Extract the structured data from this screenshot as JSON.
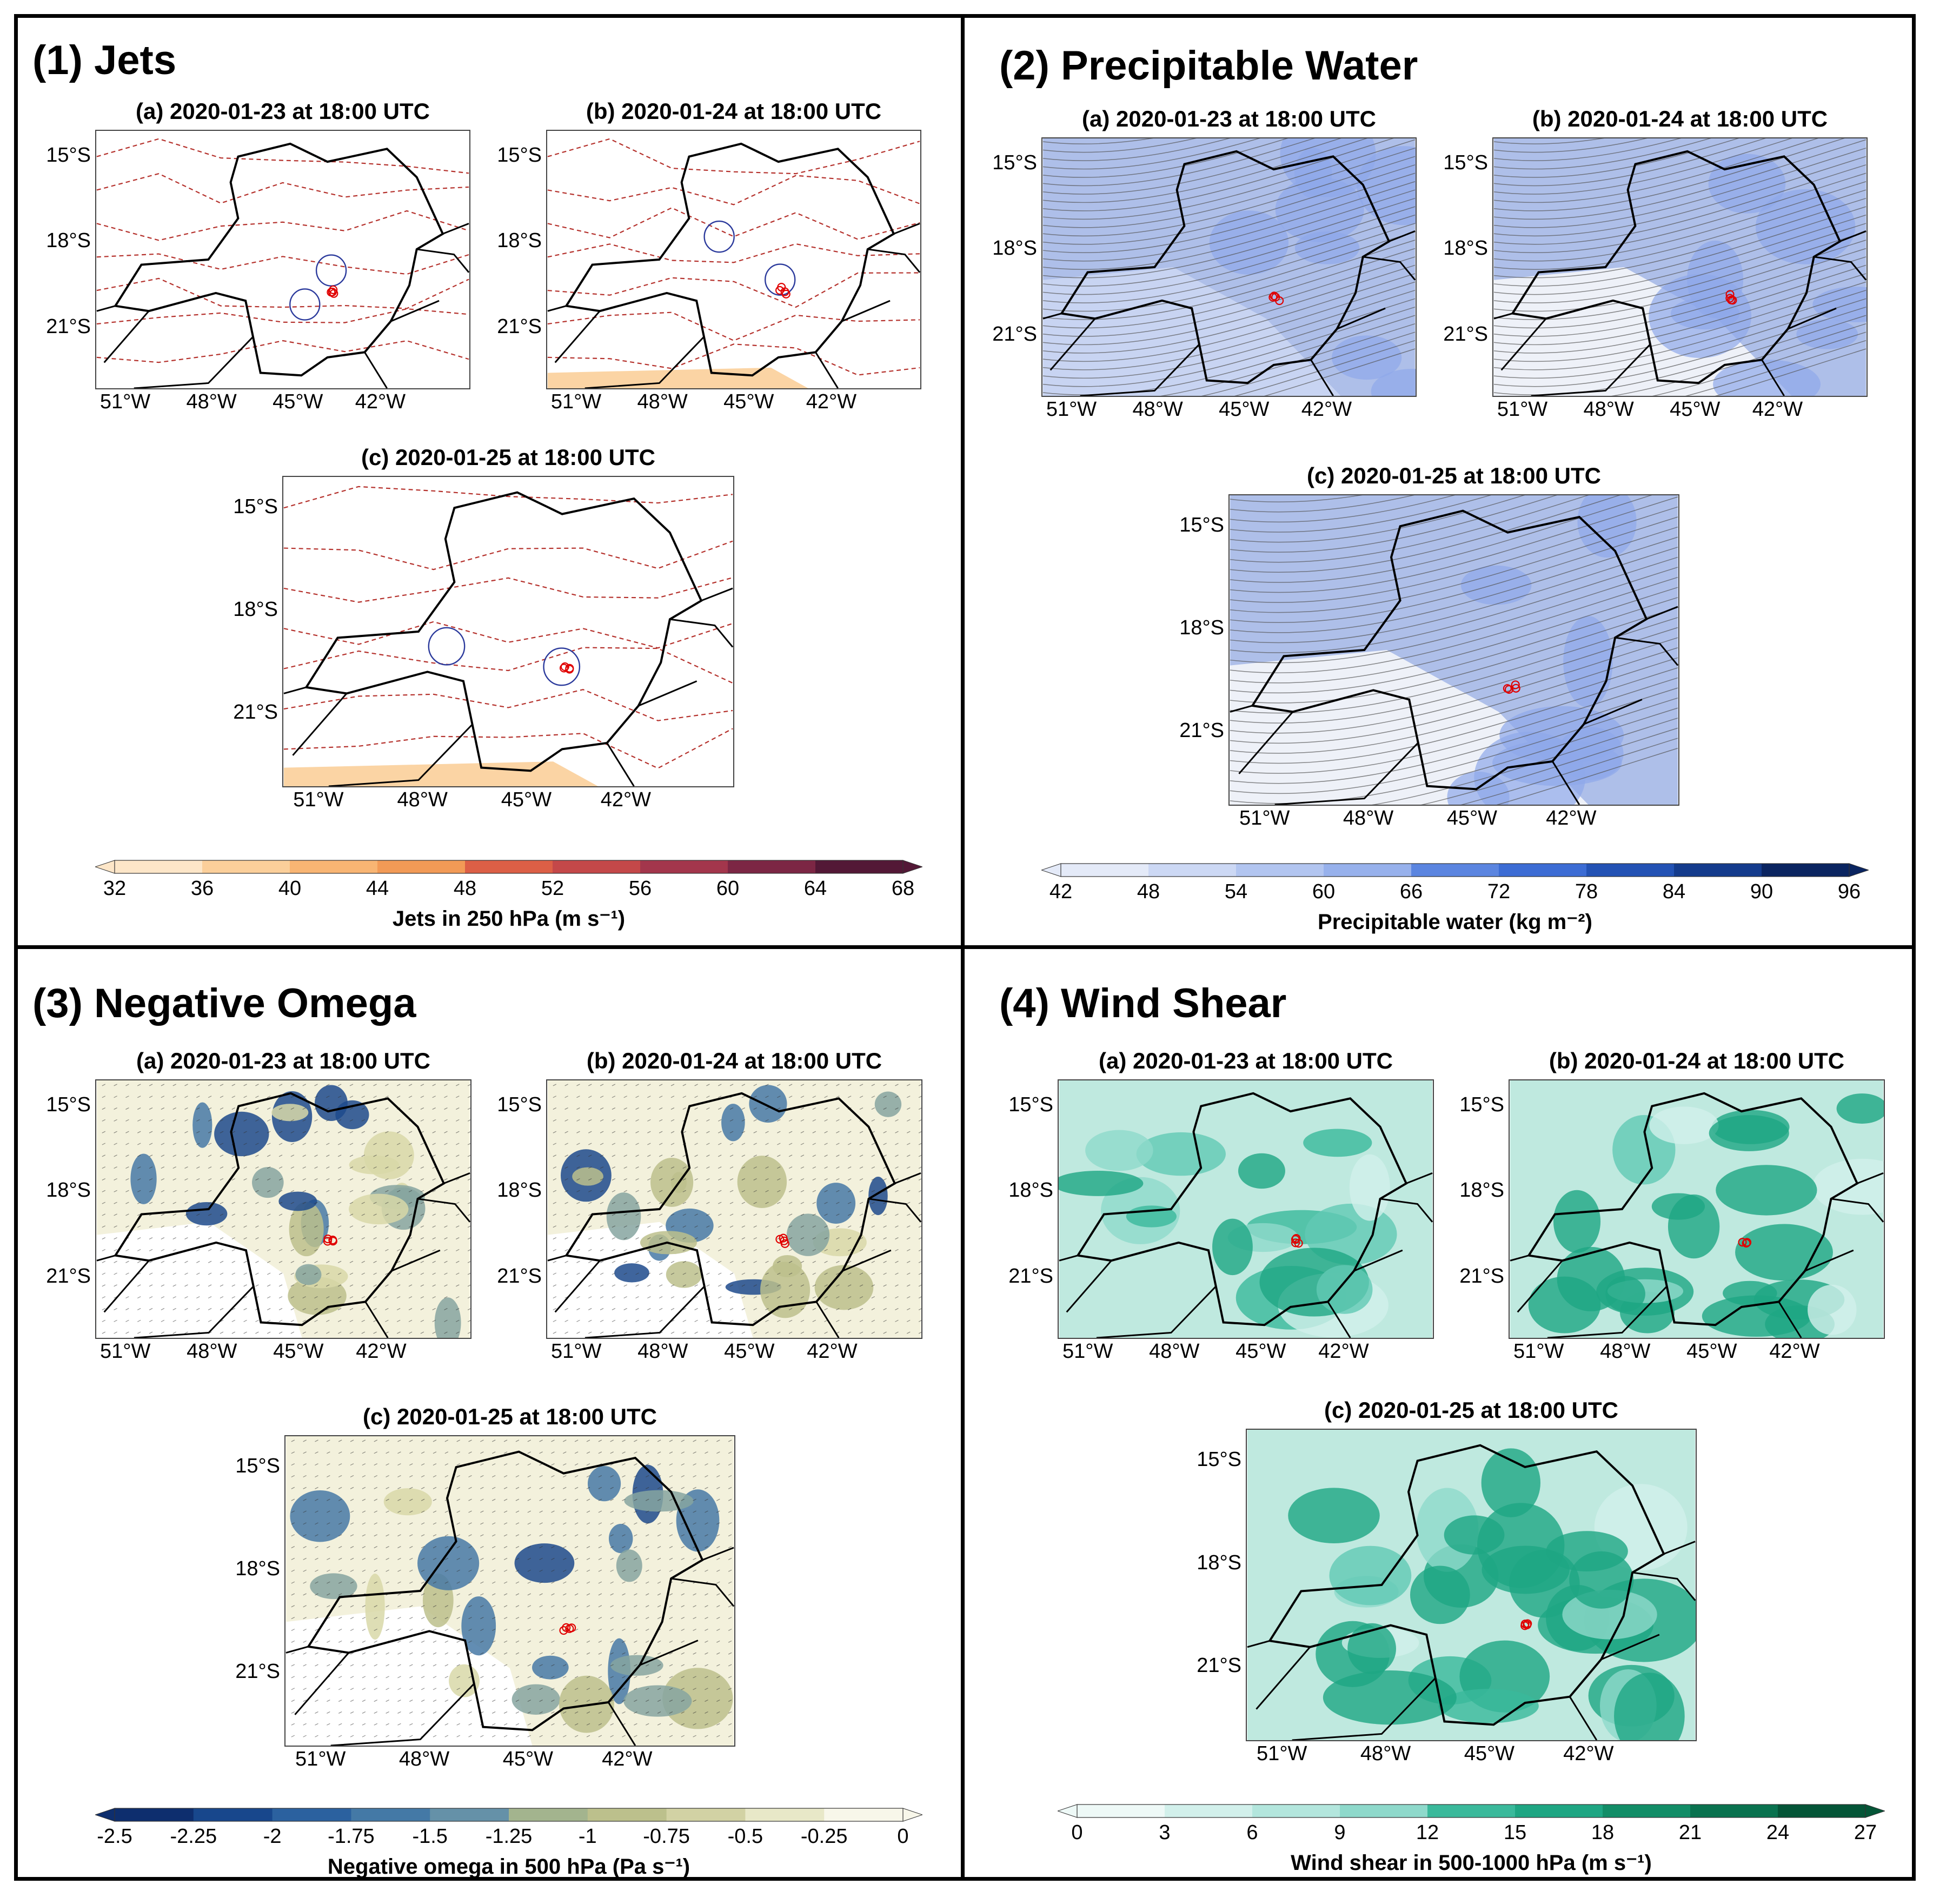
{
  "quadrants": [
    {
      "title": "(1) Jets",
      "style": "jets"
    },
    {
      "title": "(2) Precipitable Water",
      "style": "pw"
    },
    {
      "title": "(3) Negative Omega",
      "style": "omega"
    },
    {
      "title": "(4) Wind Shear",
      "style": "shear"
    }
  ],
  "panels": {
    "a": "(a) 2020-01-23 at 18:00 UTC",
    "b": "(b) 2020-01-24 at 18:00 UTC",
    "c": "(c) 2020-01-25 at 18:00 UTC"
  },
  "lat_labels": [
    "15°S",
    "18°S",
    "21°S"
  ],
  "lon_labels": [
    "51°W",
    "48°W",
    "45°W",
    "42°W"
  ],
  "colorbars": {
    "jets": {
      "ticks": [
        "32",
        "36",
        "40",
        "44",
        "48",
        "52",
        "56",
        "60",
        "64",
        "68"
      ],
      "label": "Jets in 250 hPa (m s⁻¹)",
      "colors": [
        "#fde6c8",
        "#fbcf9a",
        "#f8b573",
        "#f29a56",
        "#ea7e4a",
        "#dc5f46",
        "#c44849",
        "#a3364c",
        "#7c2644",
        "#531836"
      ]
    },
    "pw": {
      "ticks": [
        "42",
        "48",
        "54",
        "60",
        "66",
        "72",
        "78",
        "84",
        "90",
        "96"
      ],
      "label": "Precipitable water (kg m⁻²)",
      "colors": [
        "#e4eaf8",
        "#ccd8f4",
        "#b2c5f0",
        "#97b1ec",
        "#7a9ce6",
        "#5b85e0",
        "#3c6cd4",
        "#2352b4",
        "#143b8c",
        "#0a2460"
      ]
    },
    "omega": {
      "ticks": [
        "-2.5",
        "-2.25",
        "-2",
        "-1.75",
        "-1.5",
        "-1.25",
        "-1",
        "-0.75",
        "-0.5",
        "-0.25",
        "0"
      ],
      "label": "Negative omega in 500 hPa (Pa s⁻¹)",
      "colors": [
        "#0e2e6e",
        "#18478c",
        "#2b619f",
        "#4479a6",
        "#6591a8",
        "#86a4a0",
        "#a3b48e",
        "#bcc08c",
        "#d2d2a4",
        "#e8e8c8",
        "#f8f7ea"
      ]
    },
    "shear": {
      "ticks": [
        "0",
        "3",
        "6",
        "9",
        "12",
        "15",
        "18",
        "21",
        "24",
        "27"
      ],
      "label": "Wind shear in 500-1000 hPa (m s⁻¹)",
      "colors": [
        "#eef9f7",
        "#d2f0eb",
        "#b3e6dd",
        "#8ed9cb",
        "#62c9b4",
        "#3ab99b",
        "#1ea683",
        "#128d67",
        "#09724f",
        "#045537"
      ]
    }
  }
}
